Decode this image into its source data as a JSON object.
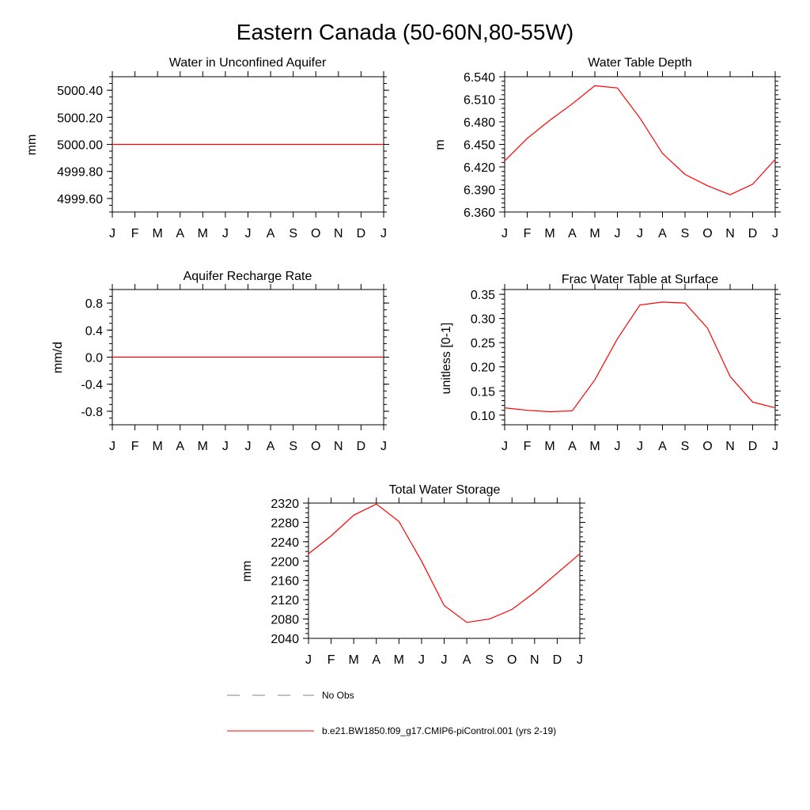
{
  "title": "Eastern Canada (50-60N,80-55W)",
  "months": [
    "J",
    "F",
    "M",
    "A",
    "M",
    "J",
    "J",
    "A",
    "S",
    "O",
    "N",
    "D",
    "J"
  ],
  "colors": {
    "series": "#ff0000",
    "obs": "#808080",
    "axis": "#000000"
  },
  "legend": {
    "obs_label": "No Obs",
    "model_label": "b.e21.BW1850.f09_g17.CMIP6-piControl.001 (yrs 2-19)"
  },
  "chart_data": [
    {
      "id": "aquifer",
      "type": "line",
      "title": "Water in Unconfined Aquifer",
      "ylabel": "mm",
      "ylim": [
        4999.5,
        5000.5
      ],
      "yticks": [
        4999.6,
        4999.8,
        5000.0,
        5000.2,
        5000.4
      ],
      "ytick_labels": [
        "4999.60",
        "4999.80",
        "5000.00",
        "5000.20",
        "5000.40"
      ],
      "minor_step": 0.05,
      "values": [
        5000,
        5000,
        5000,
        5000,
        5000,
        5000,
        5000,
        5000,
        5000,
        5000,
        5000,
        5000,
        5000
      ]
    },
    {
      "id": "wtd",
      "type": "line",
      "title": "Water Table Depth",
      "ylabel": "m",
      "ylim": [
        6.36,
        6.54
      ],
      "yticks": [
        6.36,
        6.39,
        6.42,
        6.45,
        6.48,
        6.51,
        6.54
      ],
      "ytick_labels": [
        "6.360",
        "6.390",
        "6.420",
        "6.450",
        "6.480",
        "6.510",
        "6.540"
      ],
      "minor_step": 0.006,
      "values": [
        6.428,
        6.458,
        6.482,
        6.504,
        6.528,
        6.525,
        6.485,
        6.438,
        6.41,
        6.395,
        6.383,
        6.397,
        6.43
      ]
    },
    {
      "id": "recharge",
      "type": "line",
      "title": "Aquifer Recharge Rate",
      "ylabel": "mm/d",
      "ylim": [
        -1.0,
        1.0
      ],
      "yticks": [
        -0.8,
        -0.4,
        0.0,
        0.4,
        0.8
      ],
      "ytick_labels": [
        "-0.8",
        "-0.4",
        "0.0",
        "0.4",
        "0.8"
      ],
      "minor_step": 0.1,
      "values": [
        0,
        0,
        0,
        0,
        0,
        0,
        0,
        0,
        0,
        0,
        0,
        0,
        0
      ]
    },
    {
      "id": "frac",
      "type": "line",
      "title": "Frac Water Table at Surface",
      "ylabel": "unitless [0-1]",
      "ylim": [
        0.08,
        0.36
      ],
      "yticks": [
        0.1,
        0.15,
        0.2,
        0.25,
        0.3,
        0.35
      ],
      "ytick_labels": [
        "0.10",
        "0.15",
        "0.20",
        "0.25",
        "0.30",
        "0.35"
      ],
      "minor_step": 0.01,
      "values": [
        0.115,
        0.11,
        0.107,
        0.109,
        0.173,
        0.258,
        0.328,
        0.334,
        0.332,
        0.28,
        0.18,
        0.127,
        0.115
      ]
    },
    {
      "id": "tws",
      "type": "line",
      "title": "Total Water Storage",
      "ylabel": "mm",
      "ylim": [
        2040,
        2320
      ],
      "yticks": [
        2040,
        2080,
        2120,
        2160,
        2200,
        2240,
        2280,
        2320
      ],
      "ytick_labels": [
        "2040",
        "2080",
        "2120",
        "2160",
        "2200",
        "2240",
        "2280",
        "2320"
      ],
      "minor_step": 10,
      "values": [
        2215,
        2252,
        2295,
        2318,
        2282,
        2200,
        2108,
        2073,
        2080,
        2100,
        2135,
        2175,
        2215
      ]
    }
  ]
}
